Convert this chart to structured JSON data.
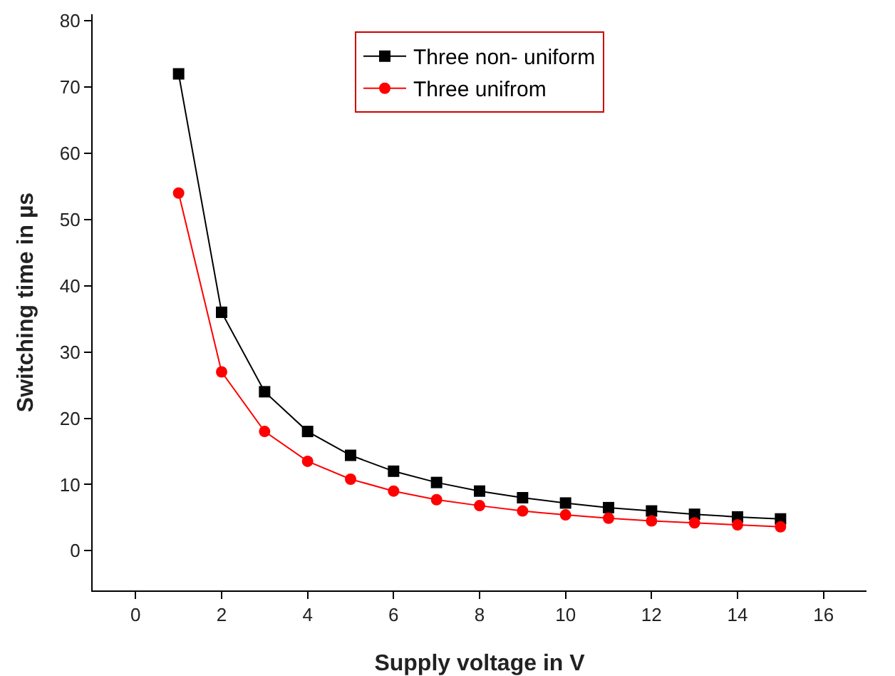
{
  "chart_data": {
    "type": "line",
    "xlabel": "Supply voltage in V",
    "ylabel": "Switching time in µs",
    "x": [
      1,
      2,
      3,
      4,
      5,
      6,
      7,
      8,
      9,
      10,
      11,
      12,
      13,
      14,
      15
    ],
    "series": [
      {
        "name": "Three non- uniform",
        "color": "#000000",
        "marker": "square",
        "values": [
          72,
          36,
          24,
          18,
          14.4,
          12,
          10.3,
          9,
          8,
          7.2,
          6.5,
          6,
          5.5,
          5.1,
          4.8
        ]
      },
      {
        "name": "Three unifrom",
        "color": "#ff0000",
        "marker": "circle",
        "values": [
          54,
          27,
          18,
          13.5,
          10.8,
          9,
          7.7,
          6.8,
          6,
          5.4,
          4.9,
          4.5,
          4.2,
          3.9,
          3.6
        ]
      }
    ],
    "xlim": [
      -1,
      17
    ],
    "xticks": [
      0,
      2,
      4,
      6,
      8,
      10,
      12,
      14,
      16
    ],
    "ylim": [
      -6,
      81
    ],
    "yticks": [
      0,
      10,
      20,
      30,
      40,
      50,
      60,
      70,
      80
    ],
    "grid": false,
    "legend": "top",
    "line_style": "solid"
  }
}
